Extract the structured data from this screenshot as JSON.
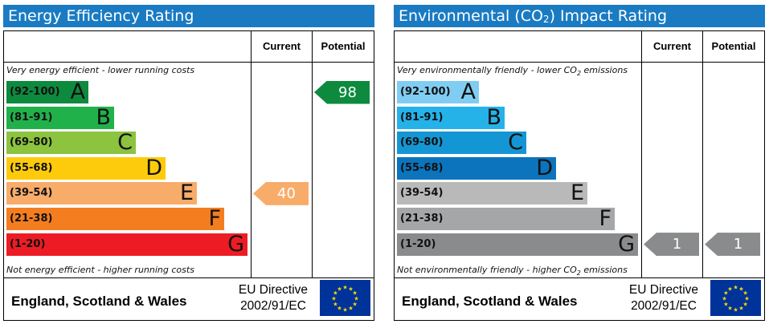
{
  "colors": {
    "title_bar": "#1a7bc3",
    "ee_bands": [
      "#0d8a3e",
      "#21b14b",
      "#8cc33f",
      "#fecb0c",
      "#f8ac6a",
      "#f47d20",
      "#ed1c24"
    ],
    "ei_bands": [
      "#7fcdf2",
      "#24b2e9",
      "#1596d4",
      "#0b74bc",
      "#b9b9b9",
      "#a5a6a8",
      "#8a8b8d"
    ],
    "eu_flag": "#003399",
    "eu_stars": "#ffde00"
  },
  "energy_efficiency": {
    "title": "Energy Efficiency Rating",
    "col_current": "Current",
    "col_potential": "Potential",
    "top_caption": "Very energy efficient - lower running costs",
    "bottom_caption": "Not energy efficient - higher running costs",
    "footer_region": "England, Scotland & Wales",
    "footer_directive_line1": "EU Directive",
    "footer_directive_line2": "2002/91/EC",
    "current_label": "40",
    "potential_label": "98"
  },
  "environmental_impact": {
    "title_before": "Environmental (CO",
    "title_sub": "2",
    "title_after": ") Impact Rating",
    "col_current": "Current",
    "col_potential": "Potential",
    "top_caption_before": "Very environmentally friendly - lower CO",
    "top_caption_sub": "2",
    "top_caption_after": " emissions",
    "bottom_caption_before": "Not environmentally friendly - higher CO",
    "bottom_caption_sub": "2",
    "bottom_caption_after": " emissions",
    "footer_region": "England, Scotland & Wales",
    "footer_directive_line1": "EU Directive",
    "footer_directive_line2": "2002/91/EC",
    "current_label": "1",
    "potential_label": "1"
  },
  "chart_data": [
    {
      "type": "bar",
      "title": "Energy Efficiency Rating",
      "categories": [
        "A",
        "B",
        "C",
        "D",
        "E",
        "F",
        "G"
      ],
      "ranges": [
        "(92-100)",
        "(81-91)",
        "(69-80)",
        "(55-68)",
        "(39-54)",
        "(21-38)",
        "(1-20)"
      ],
      "values": [
        100,
        91,
        80,
        68,
        54,
        38,
        20
      ],
      "current": 40,
      "potential": 98
    },
    {
      "type": "bar",
      "title": "Environmental (CO2) Impact Rating",
      "categories": [
        "A",
        "B",
        "C",
        "D",
        "E",
        "F",
        "G"
      ],
      "ranges": [
        "(92-100)",
        "(81-91)",
        "(69-80)",
        "(55-68)",
        "(39-54)",
        "(21-38)",
        "(1-20)"
      ],
      "values": [
        100,
        91,
        80,
        68,
        54,
        38,
        20
      ],
      "current": 1,
      "potential": 1
    }
  ]
}
